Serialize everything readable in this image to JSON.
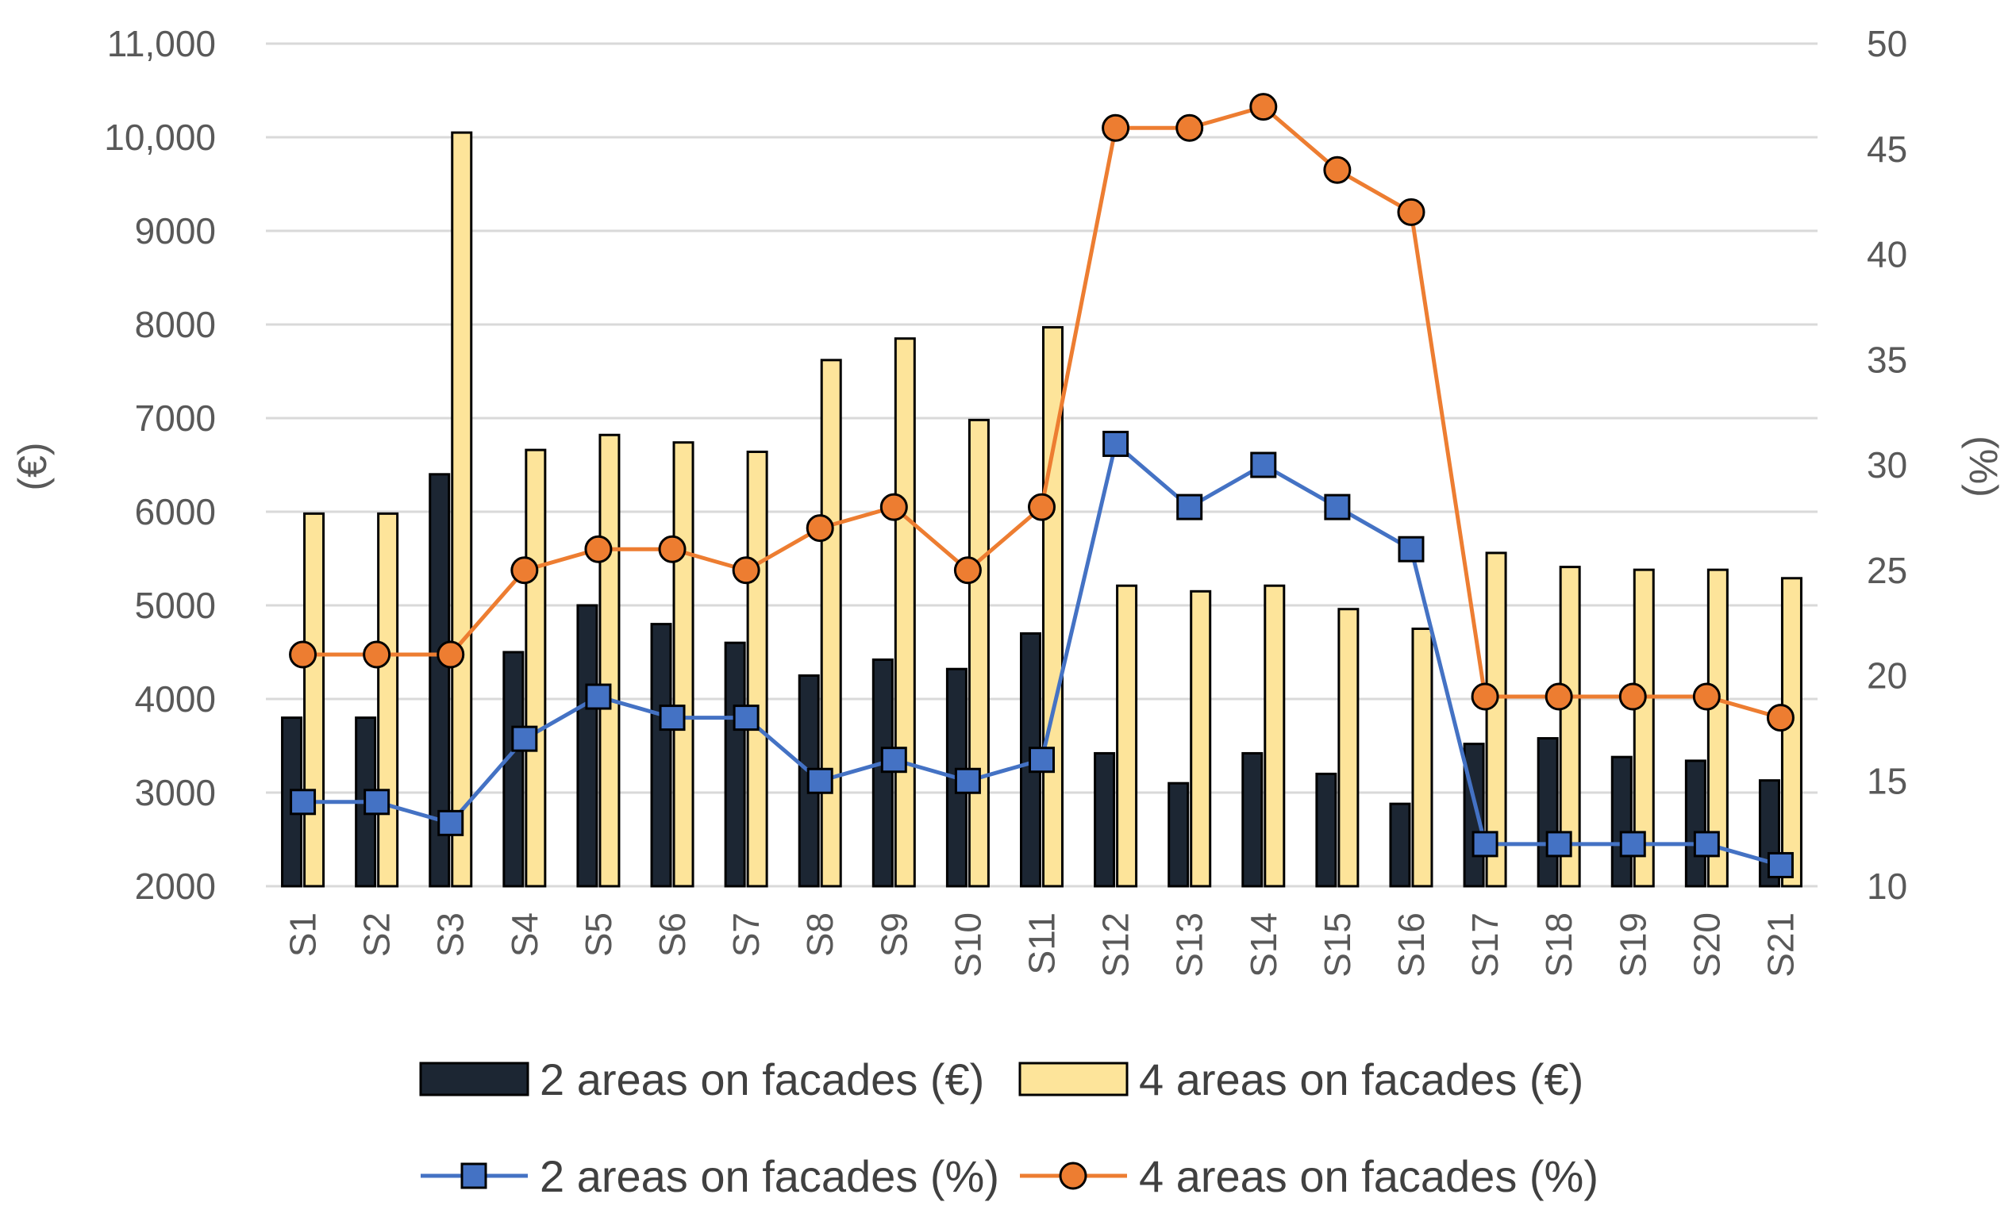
{
  "chart_data": {
    "type": "bar",
    "categories": [
      "S1",
      "S2",
      "S3",
      "S4",
      "S5",
      "S6",
      "S7",
      "S8",
      "S9",
      "S10",
      "S11",
      "S12",
      "S13",
      "S14",
      "S15",
      "S16",
      "S17",
      "S18",
      "S19",
      "S20",
      "S21"
    ],
    "ylabel": "(€)",
    "y2label": "(%)",
    "ylim": [
      2000,
      11000
    ],
    "y2lim": [
      10,
      50
    ],
    "y_ticks": [
      "2000",
      "3000",
      "4000",
      "5000",
      "6000",
      "7000",
      "8000",
      "9000",
      "10,000",
      "11,000"
    ],
    "y2_ticks": [
      "10",
      "15",
      "20",
      "25",
      "30",
      "35",
      "40",
      "45",
      "50"
    ],
    "grid": true,
    "legend_position": "bottom",
    "series": [
      {
        "name": "2 areas on facades (€)",
        "kind": "bar",
        "axis": "left",
        "color": "#1c2633",
        "values": [
          3800,
          3800,
          6400,
          4500,
          5000,
          4800,
          4600,
          4250,
          4420,
          4320,
          4700,
          3420,
          3100,
          3420,
          3200,
          2880,
          3520,
          3580,
          3380,
          3340,
          3130
        ]
      },
      {
        "name": "4 areas on facades (€)",
        "kind": "bar",
        "axis": "left",
        "color": "#fde49a",
        "values": [
          5980,
          5980,
          10050,
          6660,
          6820,
          6740,
          6640,
          7620,
          7850,
          6980,
          7970,
          5210,
          5150,
          5210,
          4960,
          4750,
          5560,
          5410,
          5380,
          5380,
          5290
        ]
      },
      {
        "name": "2 areas on facades (%)",
        "kind": "line",
        "axis": "right",
        "color": "#4472c4",
        "marker": "square",
        "marker_color": "#4472c4",
        "values": [
          14,
          14,
          13,
          17,
          19,
          18,
          18,
          15,
          16,
          15,
          16,
          31,
          28,
          30,
          28,
          26,
          12,
          12,
          12,
          12,
          11
        ]
      },
      {
        "name": "4 areas on facades (%)",
        "kind": "line",
        "axis": "right",
        "color": "#ed7d31",
        "marker": "circle",
        "marker_color": "#ed7d31",
        "values": [
          21,
          21,
          21,
          25,
          26,
          26,
          25,
          27,
          28,
          25,
          28,
          46,
          46,
          47,
          44,
          42,
          19,
          19,
          19,
          19,
          18
        ]
      }
    ]
  }
}
